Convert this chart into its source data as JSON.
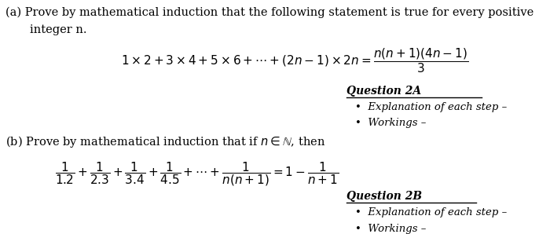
{
  "bg_color": "#ffffff",
  "text_color": "#000000",
  "question_2a_title": "Question 2A",
  "question_2a_bullet1": "Explanation of each step –",
  "question_2a_bullet2": "Workings –",
  "question_2b_title": "Question 2B",
  "question_2b_bullet1": "Explanation of each step –",
  "question_2b_bullet2": "Workings –"
}
